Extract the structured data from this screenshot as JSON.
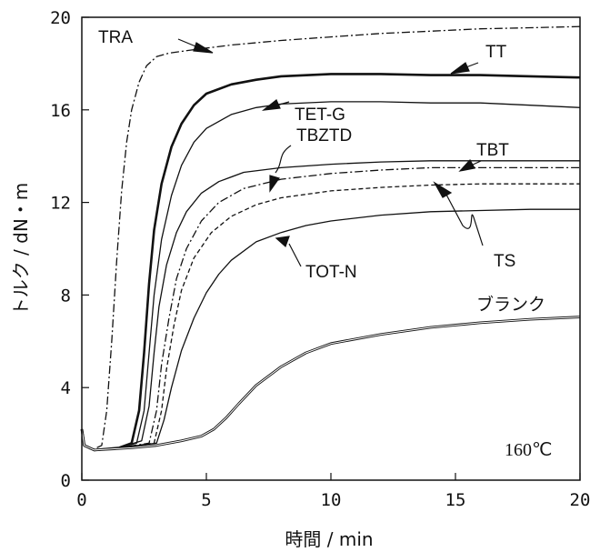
{
  "chart_data": {
    "type": "line",
    "title": "",
    "xlabel": "時間 / min",
    "ylabel": "トルク / dN・m",
    "xlim": [
      0,
      20
    ],
    "ylim": [
      0,
      20
    ],
    "x_ticks": [
      0,
      5,
      10,
      15,
      20
    ],
    "y_ticks": [
      0,
      4,
      8,
      12,
      16,
      20
    ],
    "grid": false,
    "annotation": "160℃",
    "series": [
      {
        "name": "TRA",
        "style": "dashdot",
        "points": [
          [
            0,
            2.2
          ],
          [
            0.1,
            1.5
          ],
          [
            0.4,
            1.3
          ],
          [
            0.8,
            1.5
          ],
          [
            1.0,
            3.0
          ],
          [
            1.2,
            6.0
          ],
          [
            1.4,
            9.5
          ],
          [
            1.6,
            12.5
          ],
          [
            1.8,
            14.6
          ],
          [
            2.0,
            16.0
          ],
          [
            2.3,
            17.2
          ],
          [
            2.6,
            17.9
          ],
          [
            3.0,
            18.3
          ],
          [
            3.5,
            18.45
          ],
          [
            4.5,
            18.6
          ],
          [
            6,
            18.8
          ],
          [
            8,
            19.0
          ],
          [
            10,
            19.15
          ],
          [
            12,
            19.3
          ],
          [
            14,
            19.4
          ],
          [
            16,
            19.5
          ],
          [
            18,
            19.55
          ],
          [
            20,
            19.6
          ]
        ]
      },
      {
        "name": "TT",
        "style": "solid-bold",
        "points": [
          [
            0,
            2.2
          ],
          [
            0.1,
            1.5
          ],
          [
            0.5,
            1.3
          ],
          [
            1.5,
            1.4
          ],
          [
            2.0,
            1.6
          ],
          [
            2.3,
            3.0
          ],
          [
            2.5,
            5.5
          ],
          [
            2.7,
            8.5
          ],
          [
            2.9,
            10.8
          ],
          [
            3.2,
            12.8
          ],
          [
            3.6,
            14.4
          ],
          [
            4.0,
            15.4
          ],
          [
            4.5,
            16.2
          ],
          [
            5.0,
            16.7
          ],
          [
            6,
            17.1
          ],
          [
            7,
            17.3
          ],
          [
            8,
            17.45
          ],
          [
            10,
            17.55
          ],
          [
            12,
            17.55
          ],
          [
            14,
            17.5
          ],
          [
            16,
            17.5
          ],
          [
            18,
            17.45
          ],
          [
            20,
            17.4
          ]
        ]
      },
      {
        "name": "TET-G",
        "style": "solid",
        "points": [
          [
            0,
            2.2
          ],
          [
            0.1,
            1.5
          ],
          [
            0.5,
            1.3
          ],
          [
            1.5,
            1.4
          ],
          [
            2.2,
            1.6
          ],
          [
            2.5,
            3.0
          ],
          [
            2.7,
            5.5
          ],
          [
            2.9,
            8.0
          ],
          [
            3.2,
            10.4
          ],
          [
            3.6,
            12.3
          ],
          [
            4.0,
            13.6
          ],
          [
            4.5,
            14.6
          ],
          [
            5.0,
            15.2
          ],
          [
            6,
            15.8
          ],
          [
            7,
            16.1
          ],
          [
            8,
            16.25
          ],
          [
            10,
            16.35
          ],
          [
            12,
            16.35
          ],
          [
            14,
            16.3
          ],
          [
            16,
            16.3
          ],
          [
            18,
            16.2
          ],
          [
            20,
            16.1
          ]
        ]
      },
      {
        "name": "TBZTD",
        "style": "solid",
        "points": [
          [
            0,
            2.2
          ],
          [
            0.1,
            1.5
          ],
          [
            0.5,
            1.3
          ],
          [
            1.5,
            1.4
          ],
          [
            2.4,
            1.7
          ],
          [
            2.7,
            3.2
          ],
          [
            2.9,
            5.5
          ],
          [
            3.1,
            7.5
          ],
          [
            3.4,
            9.3
          ],
          [
            3.8,
            10.7
          ],
          [
            4.2,
            11.6
          ],
          [
            4.8,
            12.4
          ],
          [
            5.5,
            12.9
          ],
          [
            6.5,
            13.3
          ],
          [
            8,
            13.5
          ],
          [
            10,
            13.65
          ],
          [
            12,
            13.75
          ],
          [
            14,
            13.8
          ],
          [
            16,
            13.8
          ],
          [
            18,
            13.8
          ],
          [
            20,
            13.8
          ]
        ]
      },
      {
        "name": "TBT",
        "style": "dashdot",
        "points": [
          [
            0,
            2.2
          ],
          [
            0.1,
            1.5
          ],
          [
            0.5,
            1.3
          ],
          [
            1.5,
            1.4
          ],
          [
            2.7,
            1.6
          ],
          [
            3.0,
            3.0
          ],
          [
            3.2,
            5.0
          ],
          [
            3.5,
            7.0
          ],
          [
            3.8,
            8.7
          ],
          [
            4.2,
            10.0
          ],
          [
            4.8,
            11.2
          ],
          [
            5.5,
            12.0
          ],
          [
            6.5,
            12.6
          ],
          [
            8,
            13.0
          ],
          [
            10,
            13.25
          ],
          [
            12,
            13.4
          ],
          [
            14,
            13.5
          ],
          [
            16,
            13.5
          ],
          [
            18,
            13.5
          ],
          [
            20,
            13.5
          ]
        ]
      },
      {
        "name": "TS",
        "style": "dashed",
        "points": [
          [
            0,
            2.2
          ],
          [
            0.1,
            1.5
          ],
          [
            0.5,
            1.3
          ],
          [
            1.5,
            1.4
          ],
          [
            2.9,
            1.6
          ],
          [
            3.2,
            3.0
          ],
          [
            3.4,
            4.8
          ],
          [
            3.7,
            6.7
          ],
          [
            4.0,
            8.2
          ],
          [
            4.5,
            9.6
          ],
          [
            5.2,
            10.7
          ],
          [
            6,
            11.4
          ],
          [
            7,
            11.9
          ],
          [
            8,
            12.2
          ],
          [
            10,
            12.5
          ],
          [
            12,
            12.65
          ],
          [
            14,
            12.75
          ],
          [
            16,
            12.8
          ],
          [
            18,
            12.8
          ],
          [
            20,
            12.8
          ]
        ]
      },
      {
        "name": "TOT-N",
        "style": "solid",
        "points": [
          [
            0,
            2.2
          ],
          [
            0.1,
            1.5
          ],
          [
            0.5,
            1.3
          ],
          [
            1.5,
            1.4
          ],
          [
            3.0,
            1.6
          ],
          [
            3.3,
            2.6
          ],
          [
            3.6,
            4.0
          ],
          [
            4.0,
            5.6
          ],
          [
            4.5,
            7.0
          ],
          [
            5.0,
            8.1
          ],
          [
            5.5,
            8.9
          ],
          [
            6,
            9.5
          ],
          [
            7,
            10.3
          ],
          [
            8,
            10.7
          ],
          [
            9,
            11.0
          ],
          [
            10,
            11.2
          ],
          [
            12,
            11.45
          ],
          [
            14,
            11.6
          ],
          [
            16,
            11.65
          ],
          [
            18,
            11.7
          ],
          [
            20,
            11.7
          ]
        ]
      },
      {
        "name": "ブランク",
        "style": "double",
        "points": [
          [
            0,
            2.2
          ],
          [
            0.1,
            1.5
          ],
          [
            0.5,
            1.3
          ],
          [
            2,
            1.4
          ],
          [
            3,
            1.5
          ],
          [
            4,
            1.7
          ],
          [
            4.8,
            1.9
          ],
          [
            5.3,
            2.2
          ],
          [
            5.8,
            2.7
          ],
          [
            6.3,
            3.3
          ],
          [
            7,
            4.1
          ],
          [
            8,
            4.9
          ],
          [
            9,
            5.5
          ],
          [
            10,
            5.9
          ],
          [
            12,
            6.3
          ],
          [
            14,
            6.6
          ],
          [
            16,
            6.8
          ],
          [
            18,
            6.95
          ],
          [
            20,
            7.05
          ]
        ]
      }
    ]
  }
}
